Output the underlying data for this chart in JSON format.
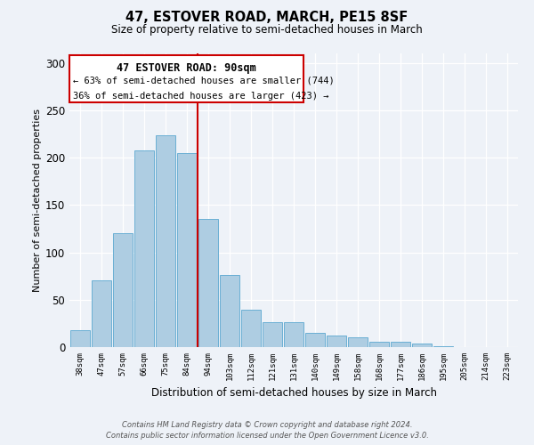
{
  "title": "47, ESTOVER ROAD, MARCH, PE15 8SF",
  "subtitle": "Size of property relative to semi-detached houses in March",
  "xlabel": "Distribution of semi-detached houses by size in March",
  "ylabel": "Number of semi-detached properties",
  "categories": [
    "38sqm",
    "47sqm",
    "57sqm",
    "66sqm",
    "75sqm",
    "84sqm",
    "94sqm",
    "103sqm",
    "112sqm",
    "121sqm",
    "131sqm",
    "140sqm",
    "149sqm",
    "158sqm",
    "168sqm",
    "177sqm",
    "186sqm",
    "195sqm",
    "205sqm",
    "214sqm",
    "223sqm"
  ],
  "values": [
    18,
    70,
    120,
    208,
    224,
    205,
    135,
    76,
    39,
    26,
    26,
    15,
    12,
    10,
    6,
    6,
    4,
    1,
    0,
    0,
    0
  ],
  "bar_color": "#aecde2",
  "bar_edge_color": "#6aafd4",
  "vline_x": 5.5,
  "vline_color": "#cc0000",
  "annotation_title": "47 ESTOVER ROAD: 90sqm",
  "annotation_line1": "← 63% of semi-detached houses are smaller (744)",
  "annotation_line2": "36% of semi-detached houses are larger (423) →",
  "annotation_box_edge": "#cc0000",
  "ylim": [
    0,
    310
  ],
  "yticks": [
    0,
    50,
    100,
    150,
    200,
    250,
    300
  ],
  "footer1": "Contains HM Land Registry data © Crown copyright and database right 2024.",
  "footer2": "Contains public sector information licensed under the Open Government Licence v3.0.",
  "background_color": "#eef2f8"
}
